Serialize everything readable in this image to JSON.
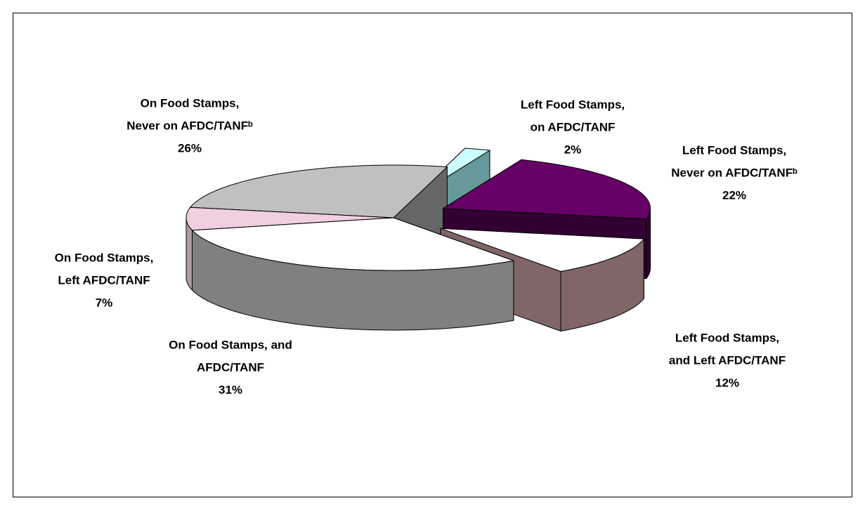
{
  "chart_data": {
    "type": "pie3d",
    "categories": [
      [
        "Left Food Stamps,",
        "on AFDC/TANF"
      ],
      [
        "Left Food Stamps,",
        "Never on AFDC/TANFᵇ"
      ],
      [
        "Left Food Stamps,",
        "and Left AFDC/TANF"
      ],
      [
        "On Food Stamps, and",
        "AFDC/TANF"
      ],
      [
        "On Food Stamps,",
        "Left AFDC/TANF"
      ],
      [
        "On Food Stamps,",
        "Never on AFDC/TANFᵇ"
      ]
    ],
    "values": [
      2,
      22,
      12,
      31,
      7,
      26
    ],
    "value_labels": [
      "2%",
      "22%",
      "12%",
      "31%",
      "7%",
      "26%"
    ],
    "colors": [
      "#ccffff",
      "#660066",
      "#ffffff",
      "#ffffff",
      "#f0cfe0",
      "#c0c0c0"
    ],
    "side_colors": [
      "#669999",
      "#330033",
      "#806666",
      "#808080",
      "#b09aa6",
      "#666666"
    ],
    "exploded": [
      true,
      true,
      true,
      false,
      false,
      false
    ]
  }
}
